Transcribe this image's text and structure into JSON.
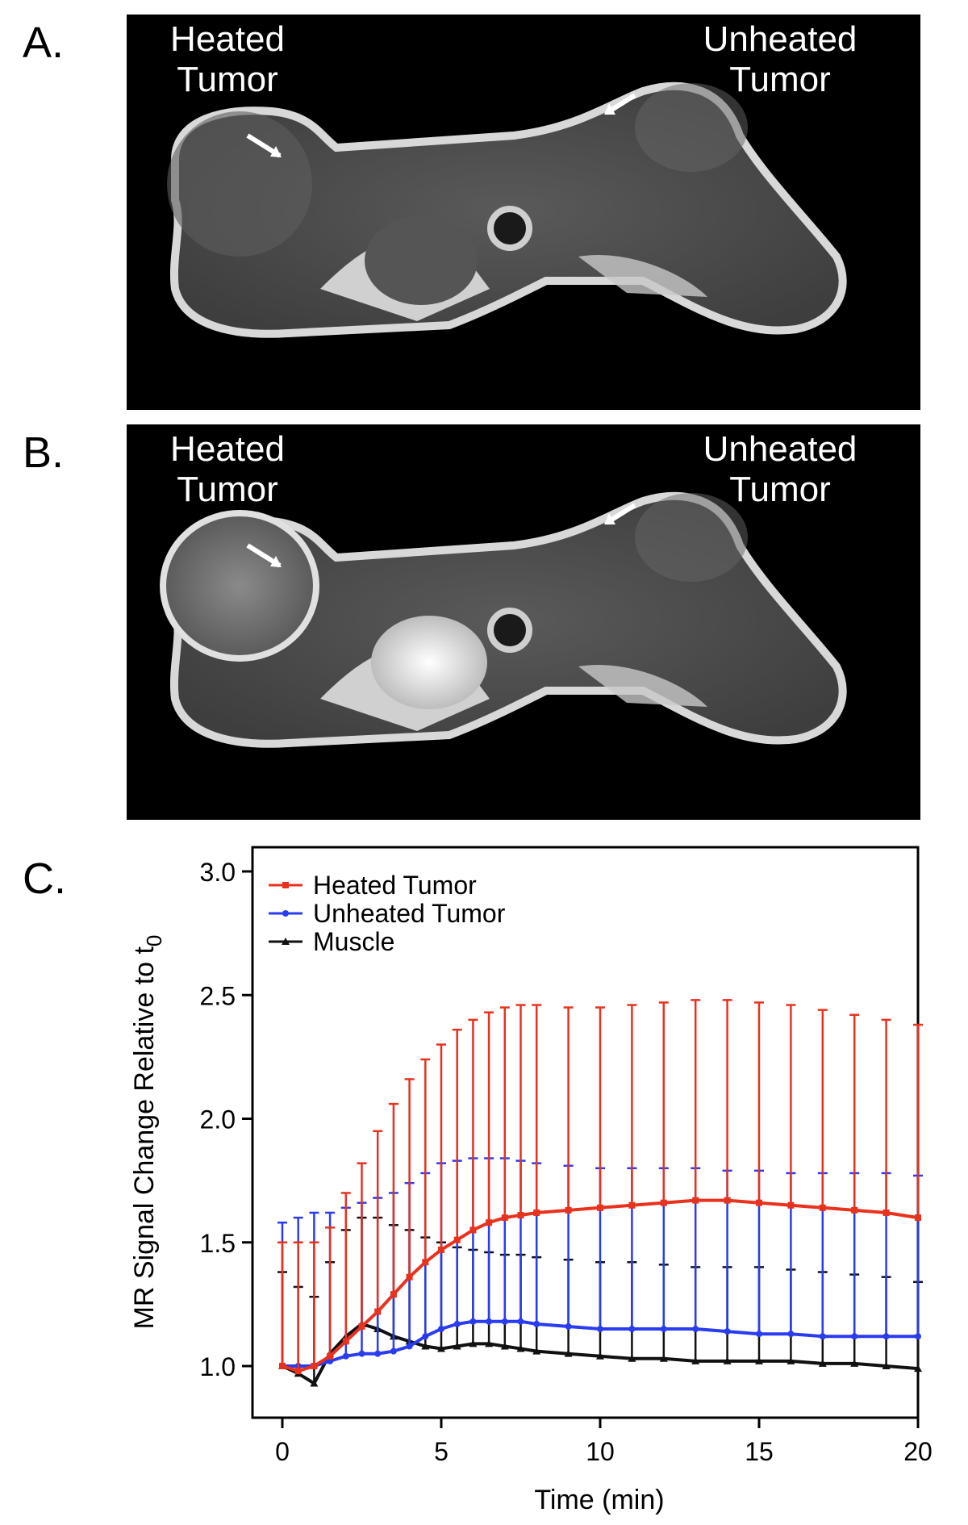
{
  "panels": {
    "a": {
      "letter": "A.",
      "label_left": "Heated\nTumor",
      "label_right": "Unheated\nTumor"
    },
    "b": {
      "letter": "B.",
      "label_left": "Heated\nTumor",
      "label_right": "Unheated\nTumor"
    },
    "c": {
      "letter": "C."
    }
  },
  "chart_data": {
    "type": "line",
    "xlabel": "Time (min)",
    "ylabel": "MR Signal Change Relative to t",
    "ylabel_subscript": "0",
    "xlim": [
      0,
      20
    ],
    "ylim": [
      1.0,
      3.0
    ],
    "xticks": [
      "0",
      "5",
      "10",
      "15",
      "20"
    ],
    "yticks": [
      "1.0",
      "1.5",
      "2.0",
      "2.5",
      "3.0"
    ],
    "grid": false,
    "legend_position": "top-left",
    "series": [
      {
        "name": "Heated Tumor",
        "color": "#e8321e",
        "marker": "square",
        "x": [
          0,
          0.5,
          1,
          1.5,
          2,
          2.5,
          3,
          3.5,
          4,
          4.5,
          5,
          5.5,
          6,
          6.5,
          7,
          7.5,
          8,
          9,
          10,
          11,
          12,
          13,
          14,
          15,
          16,
          17,
          18,
          19,
          20
        ],
        "y": [
          1.0,
          0.98,
          1.0,
          1.04,
          1.1,
          1.16,
          1.22,
          1.29,
          1.36,
          1.42,
          1.47,
          1.51,
          1.55,
          1.58,
          1.6,
          1.61,
          1.62,
          1.63,
          1.64,
          1.65,
          1.66,
          1.67,
          1.67,
          1.66,
          1.65,
          1.64,
          1.63,
          1.62,
          1.6
        ],
        "err_upper": [
          1.5,
          1.5,
          1.5,
          1.56,
          1.7,
          1.82,
          1.95,
          2.06,
          2.16,
          2.24,
          2.3,
          2.36,
          2.4,
          2.43,
          2.45,
          2.46,
          2.46,
          2.45,
          2.45,
          2.46,
          2.47,
          2.48,
          2.48,
          2.47,
          2.46,
          2.44,
          2.42,
          2.4,
          2.38
        ]
      },
      {
        "name": "Unheated Tumor",
        "color": "#2a3cf0",
        "marker": "circle",
        "x": [
          0,
          0.5,
          1,
          1.5,
          2,
          2.5,
          3,
          3.5,
          4,
          4.5,
          5,
          5.5,
          6,
          6.5,
          7,
          7.5,
          8,
          9,
          10,
          11,
          12,
          13,
          14,
          15,
          16,
          17,
          18,
          19,
          20
        ],
        "y": [
          1.0,
          1.0,
          1.0,
          1.02,
          1.04,
          1.05,
          1.05,
          1.06,
          1.08,
          1.12,
          1.15,
          1.17,
          1.18,
          1.18,
          1.18,
          1.18,
          1.17,
          1.16,
          1.15,
          1.15,
          1.15,
          1.15,
          1.14,
          1.13,
          1.13,
          1.12,
          1.12,
          1.12,
          1.12
        ],
        "err_upper": [
          1.58,
          1.6,
          1.62,
          1.62,
          1.64,
          1.66,
          1.68,
          1.7,
          1.74,
          1.78,
          1.82,
          1.83,
          1.84,
          1.84,
          1.84,
          1.83,
          1.82,
          1.81,
          1.8,
          1.8,
          1.8,
          1.8,
          1.79,
          1.79,
          1.78,
          1.78,
          1.78,
          1.78,
          1.77
        ]
      },
      {
        "name": "Muscle",
        "color": "#111111",
        "marker": "triangle",
        "x": [
          0,
          0.5,
          1,
          1.5,
          2,
          2.5,
          3,
          3.5,
          4,
          4.5,
          5,
          5.5,
          6,
          6.5,
          7,
          7.5,
          8,
          9,
          10,
          11,
          12,
          13,
          14,
          15,
          16,
          17,
          18,
          19,
          20
        ],
        "y": [
          1.0,
          0.97,
          0.93,
          1.05,
          1.12,
          1.17,
          1.15,
          1.12,
          1.1,
          1.08,
          1.07,
          1.08,
          1.09,
          1.09,
          1.08,
          1.07,
          1.06,
          1.05,
          1.04,
          1.03,
          1.03,
          1.02,
          1.02,
          1.02,
          1.02,
          1.01,
          1.01,
          1.0,
          0.99
        ],
        "err_upper": [
          1.38,
          1.32,
          1.28,
          1.42,
          1.55,
          1.6,
          1.6,
          1.57,
          1.55,
          1.52,
          1.5,
          1.48,
          1.47,
          1.46,
          1.45,
          1.45,
          1.44,
          1.43,
          1.42,
          1.42,
          1.41,
          1.4,
          1.4,
          1.4,
          1.39,
          1.38,
          1.37,
          1.36,
          1.34
        ]
      }
    ]
  }
}
